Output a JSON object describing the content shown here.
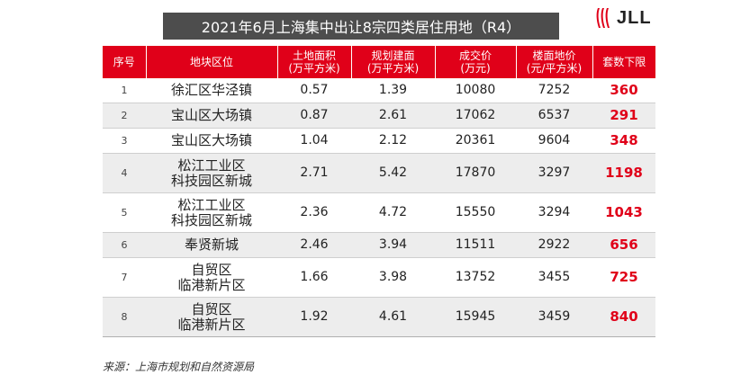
{
  "title": "2021年6月上海集中出让8宗四类居住用地（R4）",
  "logo": {
    "text": "JLL",
    "color": "#e00019"
  },
  "colors": {
    "header_red": "#e00019",
    "title_bg": "#4d4d4d",
    "limit_red": "#e00019",
    "stripe_gray": "#ededed"
  },
  "table": {
    "headers": [
      {
        "line1": "序号",
        "line2": ""
      },
      {
        "line1": "地块区位",
        "line2": ""
      },
      {
        "line1": "土地面积",
        "line2": "(万平方米)"
      },
      {
        "line1": "规划建面",
        "line2": "(万平方米)"
      },
      {
        "line1": "成交价",
        "line2": "(万元)"
      },
      {
        "line1": "楼面地价",
        "line2": "(元/平方米)"
      },
      {
        "line1": "套数下限",
        "line2": ""
      }
    ],
    "rows": [
      {
        "no": "1",
        "loc1": "徐汇区华泾镇",
        "loc2": "",
        "area": "0.57",
        "gfa": "1.39",
        "price": "10080",
        "unit": "7252",
        "limit": "360"
      },
      {
        "no": "2",
        "loc1": "宝山区大场镇",
        "loc2": "",
        "area": "0.87",
        "gfa": "2.61",
        "price": "17062",
        "unit": "6537",
        "limit": "291"
      },
      {
        "no": "3",
        "loc1": "宝山区大场镇",
        "loc2": "",
        "area": "1.04",
        "gfa": "2.12",
        "price": "20361",
        "unit": "9604",
        "limit": "348"
      },
      {
        "no": "4",
        "loc1": "松江工业区",
        "loc2": "科技园区新城",
        "area": "2.71",
        "gfa": "5.42",
        "price": "17870",
        "unit": "3297",
        "limit": "1198"
      },
      {
        "no": "5",
        "loc1": "松江工业区",
        "loc2": "科技园区新城",
        "area": "2.36",
        "gfa": "4.72",
        "price": "15550",
        "unit": "3294",
        "limit": "1043"
      },
      {
        "no": "6",
        "loc1": "奉贤新城",
        "loc2": "",
        "area": "2.46",
        "gfa": "3.94",
        "price": "11511",
        "unit": "2922",
        "limit": "656"
      },
      {
        "no": "7",
        "loc1": "自贸区",
        "loc2": "临港新片区",
        "area": "1.66",
        "gfa": "3.98",
        "price": "13752",
        "unit": "3455",
        "limit": "725"
      },
      {
        "no": "8",
        "loc1": "自贸区",
        "loc2": "临港新片区",
        "area": "1.92",
        "gfa": "4.61",
        "price": "15945",
        "unit": "3459",
        "limit": "840"
      }
    ]
  },
  "source": "来源：上海市规划和自然资源局"
}
